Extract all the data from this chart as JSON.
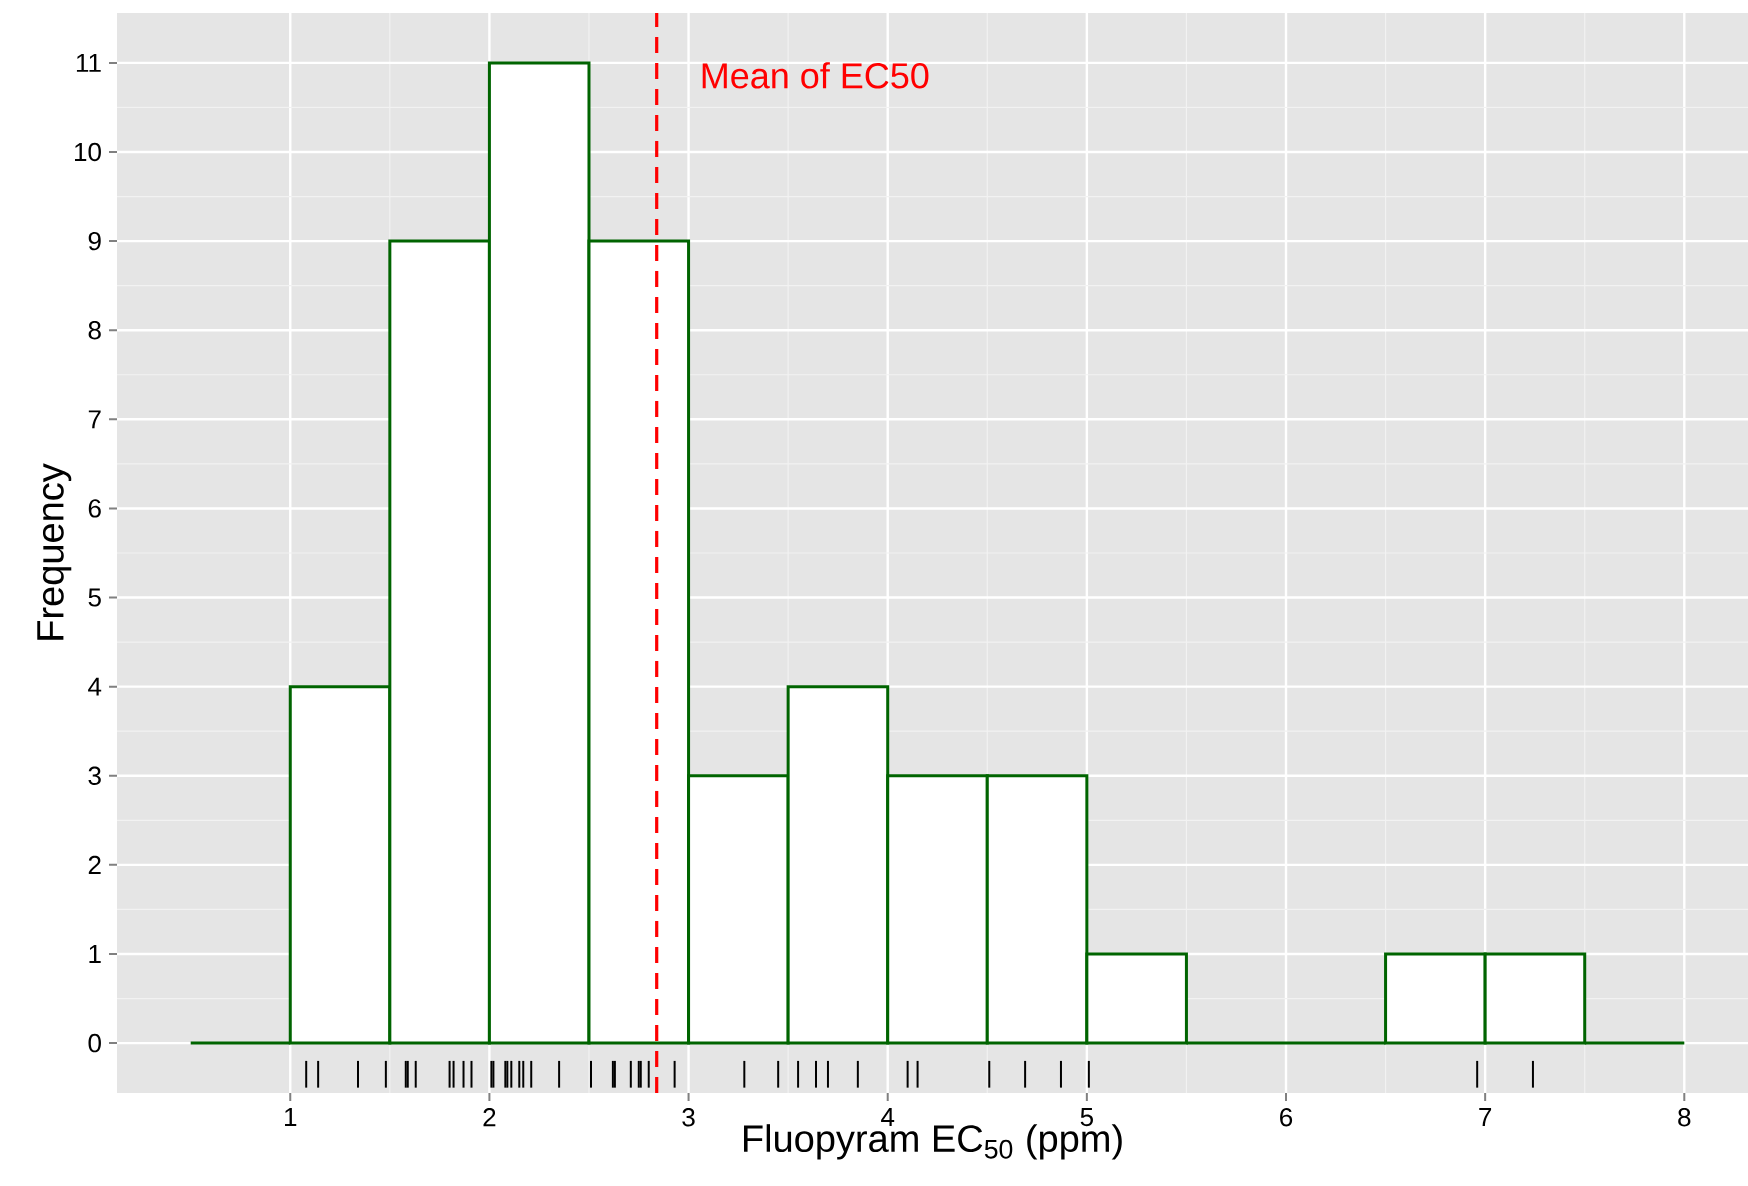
{
  "chart_data": {
    "type": "histogram",
    "xlabel": "Fluopyram EC$_{50}$ (ppm)",
    "ylabel": "Frequency",
    "bins": [
      0.5,
      1,
      1.5,
      2,
      2.5,
      3,
      3.5,
      4,
      4.5,
      5,
      5.5,
      6,
      6.5,
      7,
      7.5,
      8
    ],
    "values": [
      0,
      4,
      9,
      11,
      9,
      3,
      4,
      3,
      3,
      1,
      0,
      0,
      1,
      1,
      0
    ],
    "color": "#006400",
    "series": [
      {
        "type": "bar",
        "color": "#000000",
        "base": [
          -0.5,
          -0.5,
          -0.5,
          -0.5,
          -0.5,
          -0.5,
          -0.5,
          -0.5,
          -0.5,
          -0.5,
          -0.5,
          -0.5,
          -0.5,
          -0.5,
          -0.5,
          -0.5,
          -0.5,
          -0.5,
          -0.5,
          -0.5,
          -0.5,
          -0.5,
          -0.5,
          -0.5,
          -0.5,
          -0.5,
          -0.5,
          -0.5,
          -0.5,
          -0.5,
          -0.5,
          -0.5,
          -0.5,
          -0.5,
          -0.5,
          -0.5,
          -0.5,
          -0.5,
          -0.5,
          -0.5,
          -0.5,
          -0.5
        ],
        "x": [
          1.08,
          1.14,
          1.34,
          1.48,
          1.58,
          1.59,
          1.63,
          1.8,
          1.82,
          1.87,
          1.91,
          2.01,
          2.02,
          2.08,
          2.09,
          2.11,
          2.15,
          2.17,
          2.21,
          2.35,
          2.51,
          2.62,
          2.63,
          2.71,
          2.75,
          2.76,
          2.8,
          2.93,
          3.28,
          3.45,
          3.55,
          3.64,
          3.7,
          3.85,
          4.1,
          4.15,
          4.51,
          4.69,
          4.87,
          5.01,
          6.96,
          7.24
        ],
        "values": [
          0.3,
          0.3,
          0.3,
          0.3,
          0.3,
          0.3,
          0.3,
          0.3,
          0.3,
          0.3,
          0.3,
          0.3,
          0.3,
          0.3,
          0.3,
          0.3,
          0.3,
          0.3,
          0.3,
          0.3,
          0.3,
          0.3,
          0.3,
          0.3,
          0.3,
          0.3,
          0.3,
          0.3,
          0.3,
          0.3,
          0.3,
          0.3,
          0.3,
          0.3,
          0.3,
          0.3,
          0.3,
          0.3,
          0.3,
          0.3,
          0.3,
          0.3
        ]
      }
    ],
    "ref_lines": [
      {
        "axis": "x",
        "value": 2.84,
        "label": "Mean of EC50",
        "color": "#ff0000",
        "line_style": "dashed"
      }
    ],
    "xlim": [
      0.13,
      8.32
    ],
    "ylim": [
      -0.56,
      11.56
    ],
    "xticks": [
      1,
      2,
      3,
      4,
      5,
      6,
      7,
      8
    ],
    "yticks": [
      0,
      1,
      2,
      3,
      4,
      5,
      6,
      7,
      8,
      9,
      10,
      11
    ],
    "grid": true
  }
}
